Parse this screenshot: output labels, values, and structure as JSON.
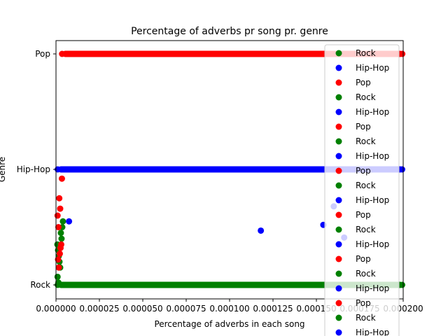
{
  "chart_data": {
    "type": "scatter",
    "title": "Percentage of adverbs pr song pr. genre",
    "xlabel": "Percentage of adverbs in each song",
    "ylabel": "Genre",
    "xlim": [
      0,
      0.0002
    ],
    "x_ticks": [
      "0.000000",
      "0.000025",
      "0.000050",
      "0.000075",
      "0.000100",
      "0.000125",
      "0.000150",
      "0.000175",
      "0.000200"
    ],
    "categories": [
      "Rock",
      "Hip-Hop",
      "Pop"
    ],
    "grid": false,
    "legend_placement": "right",
    "legend": [
      "Rock",
      "Hip-Hop",
      "Pop",
      "Rock",
      "Hip-Hop",
      "Pop",
      "Rock",
      "Hip-Hop",
      "Pop",
      "Rock",
      "Hip-Hop",
      "Pop",
      "Rock",
      "Hip-Hop",
      "Pop",
      "Rock",
      "Hip-Hop",
      "Pop",
      "Rock",
      "Hip-Hop"
    ],
    "series": [
      {
        "name": "Rock",
        "color": "#008000",
        "points": [
          [
            4e-07,
            1
          ],
          [
            8e-07,
            1
          ],
          [
            1.2e-06,
            1
          ],
          [
            1.6e-06,
            1
          ],
          [
            2e-06,
            1
          ],
          [
            2.4e-06,
            1
          ],
          [
            2.8e-06,
            1
          ],
          [
            3.2e-06,
            1
          ],
          [
            3.6e-06,
            1
          ],
          [
            5e-07,
            1
          ],
          [
            1e-06,
            1
          ]
        ]
      },
      {
        "name": "Hip-Hop",
        "color": "#0000ff",
        "points": [
          [
            7.5e-06,
            1
          ],
          [
            0.000118,
            1
          ],
          [
            0.000154,
            1
          ],
          [
            0.00016,
            1
          ],
          [
            0.000166,
            1
          ]
        ]
      },
      {
        "name": "Pop",
        "color": "#ff0000",
        "points": [
          [
            5e-07,
            1
          ],
          [
            1e-06,
            1
          ],
          [
            1.5e-06,
            1
          ],
          [
            2e-06,
            1
          ],
          [
            8e-07,
            1
          ],
          [
            1.2e-06,
            1
          ],
          [
            1.8e-06,
            1
          ],
          [
            2.2e-06,
            1
          ],
          [
            2.6e-06,
            1
          ],
          [
            3e-06,
            1
          ]
        ]
      }
    ],
    "dense_bands": [
      {
        "category": "Pop",
        "color": "#ff0000",
        "x_from": 3.5e-06,
        "x_to": 0.0002
      },
      {
        "category": "Hip-Hop",
        "color": "#0000ff",
        "x_from": 1e-06,
        "x_to": 0.0002
      },
      {
        "category": "Rock",
        "color": "#008000",
        "x_from": 1e-06,
        "x_to": 0.0002
      }
    ],
    "scatter_y_values": {
      "Rock": [
        1.35,
        1.3,
        1.25,
        1.2,
        1.15,
        1.45,
        1.4,
        1.5,
        1.55,
        1.07,
        1.02
      ],
      "Hip-Hop": [
        1.55,
        1.47,
        1.52,
        1.68,
        1.41
      ],
      "Pop": [
        1.6,
        1.5,
        1.75,
        1.66,
        1.22,
        1.15,
        1.27,
        1.32,
        1.35,
        1.92
      ]
    }
  }
}
